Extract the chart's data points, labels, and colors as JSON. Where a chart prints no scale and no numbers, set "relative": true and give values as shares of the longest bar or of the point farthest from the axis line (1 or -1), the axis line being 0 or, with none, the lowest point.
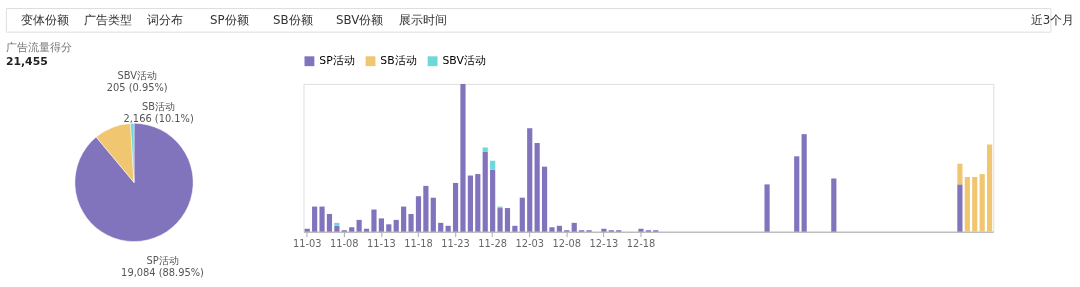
{
  "chart_data": [
    {
      "type": "other",
      "annotations": [
        "变体份额",
        "广告类型",
        "词分布",
        "SP份额",
        "SB份额",
        "SBV份额",
        "展示时间",
        "近3个月"
      ]
    },
    {
      "type": "pie",
      "title": "广告流量得分",
      "subtitle": "21,455",
      "categories": [
        "SP活动",
        "SB活动",
        "SBV活动"
      ],
      "values": [
        19084,
        2166,
        205
      ],
      "colors": [
        "#8174bd",
        "#f0c770",
        "#6dd8d8"
      ],
      "value_labels": [
        "19,084 (88.95%)",
        "2,166 (10.1%)",
        "205 (0.95%)"
      ]
    },
    {
      "type": "bar",
      "stacked": true,
      "relative": true,
      "legend": "top",
      "grid": false,
      "categories": [
        "11-03",
        null,
        null,
        null,
        null,
        "11-08",
        null,
        null,
        null,
        null,
        "11-13",
        null,
        null,
        null,
        null,
        "11-18",
        null,
        null,
        null,
        null,
        "11-23",
        null,
        null,
        null,
        null,
        "11-28",
        null,
        null,
        null,
        null,
        "12-03",
        null,
        null,
        null,
        null,
        "12-08",
        null,
        null,
        null,
        null,
        "12-13",
        null,
        null,
        null,
        null,
        "12-18",
        null,
        null,
        null,
        null,
        null,
        null,
        null,
        null,
        null,
        null,
        null,
        null,
        null,
        null,
        null,
        null,
        null,
        null,
        null,
        null,
        null,
        null,
        null,
        null,
        null,
        null,
        null,
        null,
        null,
        null,
        null,
        null,
        null,
        null,
        null,
        null,
        null,
        null,
        null,
        null,
        null,
        null,
        null,
        null,
        null,
        null,
        null
      ],
      "series": [
        {
          "name": "SP活动",
          "color": "#8174bd",
          "values": [
            0.02,
            0.17,
            0.17,
            0.12,
            0.04,
            0.01,
            0.03,
            0.08,
            0.02,
            0.15,
            0.09,
            0.05,
            0.08,
            0.17,
            0.12,
            0.24,
            0.31,
            0.23,
            0.06,
            0.04,
            0.33,
            1,
            0.38,
            0.39,
            0.54,
            0.42,
            0.16,
            0.16,
            0.04,
            0.23,
            0.7,
            0.6,
            0.44,
            0.03,
            0.04,
            0.01,
            0.06,
            0.01,
            0.01,
            0,
            0.02,
            0.01,
            0.01,
            0,
            0,
            0.02,
            0.01,
            0.01,
            null,
            null,
            null,
            null,
            null,
            null,
            null,
            null,
            null,
            null,
            null,
            null,
            null,
            null,
            0.32,
            null,
            null,
            null,
            0.51,
            0.66,
            null,
            null,
            null,
            0.36,
            null,
            null,
            null,
            null,
            null,
            null,
            null,
            null,
            null,
            null,
            null,
            null,
            null,
            null,
            null,
            null,
            0.32,
            null,
            null,
            null,
            null
          ]
        },
        {
          "name": "SB活动",
          "color": "#f0c770",
          "values": [
            null,
            null,
            null,
            null,
            null,
            null,
            null,
            null,
            null,
            null,
            null,
            null,
            null,
            null,
            null,
            null,
            null,
            null,
            null,
            null,
            null,
            null,
            null,
            null,
            null,
            null,
            null,
            null,
            null,
            null,
            null,
            null,
            null,
            null,
            null,
            null,
            null,
            null,
            null,
            null,
            null,
            null,
            null,
            null,
            null,
            null,
            null,
            null,
            null,
            null,
            null,
            null,
            null,
            null,
            null,
            null,
            null,
            null,
            null,
            null,
            null,
            null,
            null,
            null,
            null,
            null,
            null,
            null,
            null,
            null,
            null,
            null,
            null,
            null,
            null,
            null,
            null,
            null,
            null,
            null,
            null,
            null,
            null,
            null,
            null,
            null,
            null,
            null,
            0.14,
            0.37,
            0.37,
            0.39,
            0.59
          ]
        },
        {
          "name": "SBV活动",
          "color": "#6dd8d8",
          "values": [
            null,
            null,
            null,
            null,
            0.02,
            null,
            null,
            null,
            null,
            null,
            null,
            null,
            null,
            null,
            null,
            null,
            null,
            null,
            null,
            null,
            null,
            null,
            null,
            null,
            0.03,
            0.06,
            0.01,
            null,
            null,
            null,
            null,
            null,
            null,
            null,
            null,
            null,
            null,
            null,
            null,
            null,
            null,
            null,
            null,
            null,
            null,
            null,
            null,
            null,
            null,
            null,
            null,
            null,
            null,
            null,
            null,
            null,
            null,
            null,
            null,
            null,
            null,
            null,
            null,
            null,
            null,
            null,
            null,
            null,
            null,
            null,
            null,
            null,
            null,
            null,
            null,
            null,
            null,
            null,
            null,
            null,
            null,
            null,
            null,
            null,
            null,
            null,
            null,
            null,
            null,
            null,
            null,
            null,
            null
          ]
        }
      ]
    }
  ]
}
